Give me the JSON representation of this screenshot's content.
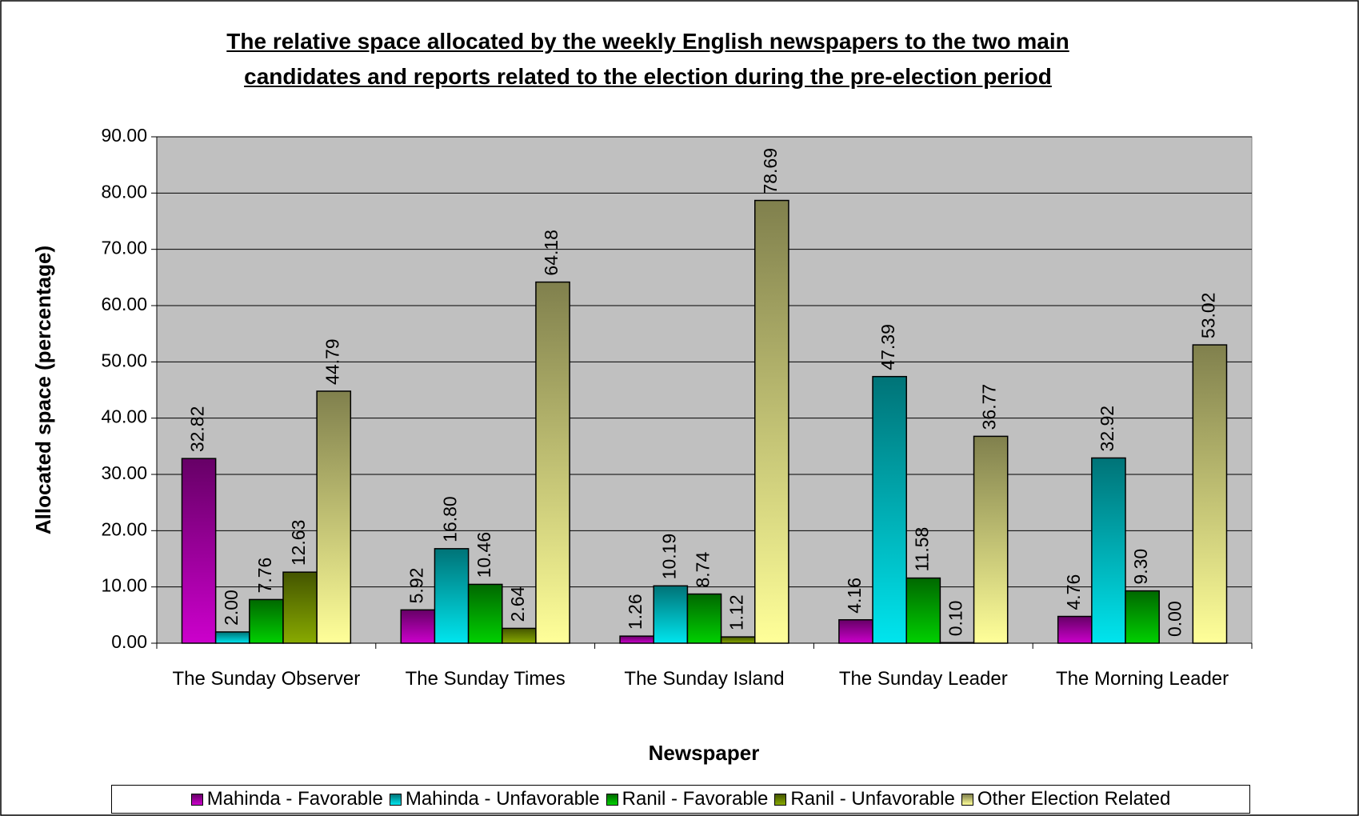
{
  "chart_data": {
    "type": "bar",
    "title": [
      "The relative space allocated by the weekly English newspapers to the two main",
      "candidates and reports related to the election during the pre-election period"
    ],
    "x_label": "Newspaper",
    "y_label": "Allocated space (percentage)",
    "categories": [
      "The Sunday Observer",
      "The Sunday Times",
      "The Sunday Island",
      "The Sunday Leader",
      "The Morning Leader"
    ],
    "series": [
      {
        "name": "Mahinda - Favorable",
        "color": "#cc00cc",
        "values": [
          32.82,
          5.92,
          1.26,
          4.16,
          4.76
        ],
        "value_labels": [
          "32.82",
          "5.92",
          "1.26",
          "4.16",
          "4.76"
        ]
      },
      {
        "name": "Mahinda - Unfavorable",
        "color": "#00e5ee",
        "values": [
          2.0,
          16.8,
          10.19,
          47.39,
          32.92
        ],
        "value_labels": [
          "2.00",
          "16.80",
          "10.19",
          "47.39",
          "32.92"
        ]
      },
      {
        "name": "Ranil - Favorable",
        "color": "#00d000",
        "values": [
          7.76,
          10.46,
          8.74,
          11.58,
          9.3
        ],
        "value_labels": [
          "7.76",
          "10.46",
          "8.74",
          "11.58",
          "9.30"
        ]
      },
      {
        "name": "Ranil - Unfavorable",
        "color": "#88aa00",
        "values": [
          12.63,
          2.64,
          1.12,
          0.1,
          0.0
        ],
        "value_labels": [
          "12.63",
          "2.64",
          "1.12",
          "0.10",
          "0.00"
        ]
      },
      {
        "name": "Other Election Related",
        "color": "#ffff99",
        "values": [
          44.79,
          64.18,
          78.69,
          36.77,
          53.02
        ],
        "value_labels": [
          "44.79",
          "64.18",
          "78.69",
          "36.77",
          "53.02"
        ]
      }
    ],
    "ylim": [
      0,
      90
    ],
    "yticks": [
      {
        "value": 0,
        "label": "0.00"
      },
      {
        "value": 10,
        "label": "10.00"
      },
      {
        "value": 20,
        "label": "20.00"
      },
      {
        "value": 30,
        "label": "30.00"
      },
      {
        "value": 40,
        "label": "40.00"
      },
      {
        "value": 50,
        "label": "50.00"
      },
      {
        "value": 60,
        "label": "60.00"
      },
      {
        "value": 70,
        "label": "70.00"
      },
      {
        "value": 80,
        "label": "80.00"
      },
      {
        "value": 90,
        "label": "90.00"
      }
    ],
    "grid": true,
    "legend": "bottom"
  }
}
